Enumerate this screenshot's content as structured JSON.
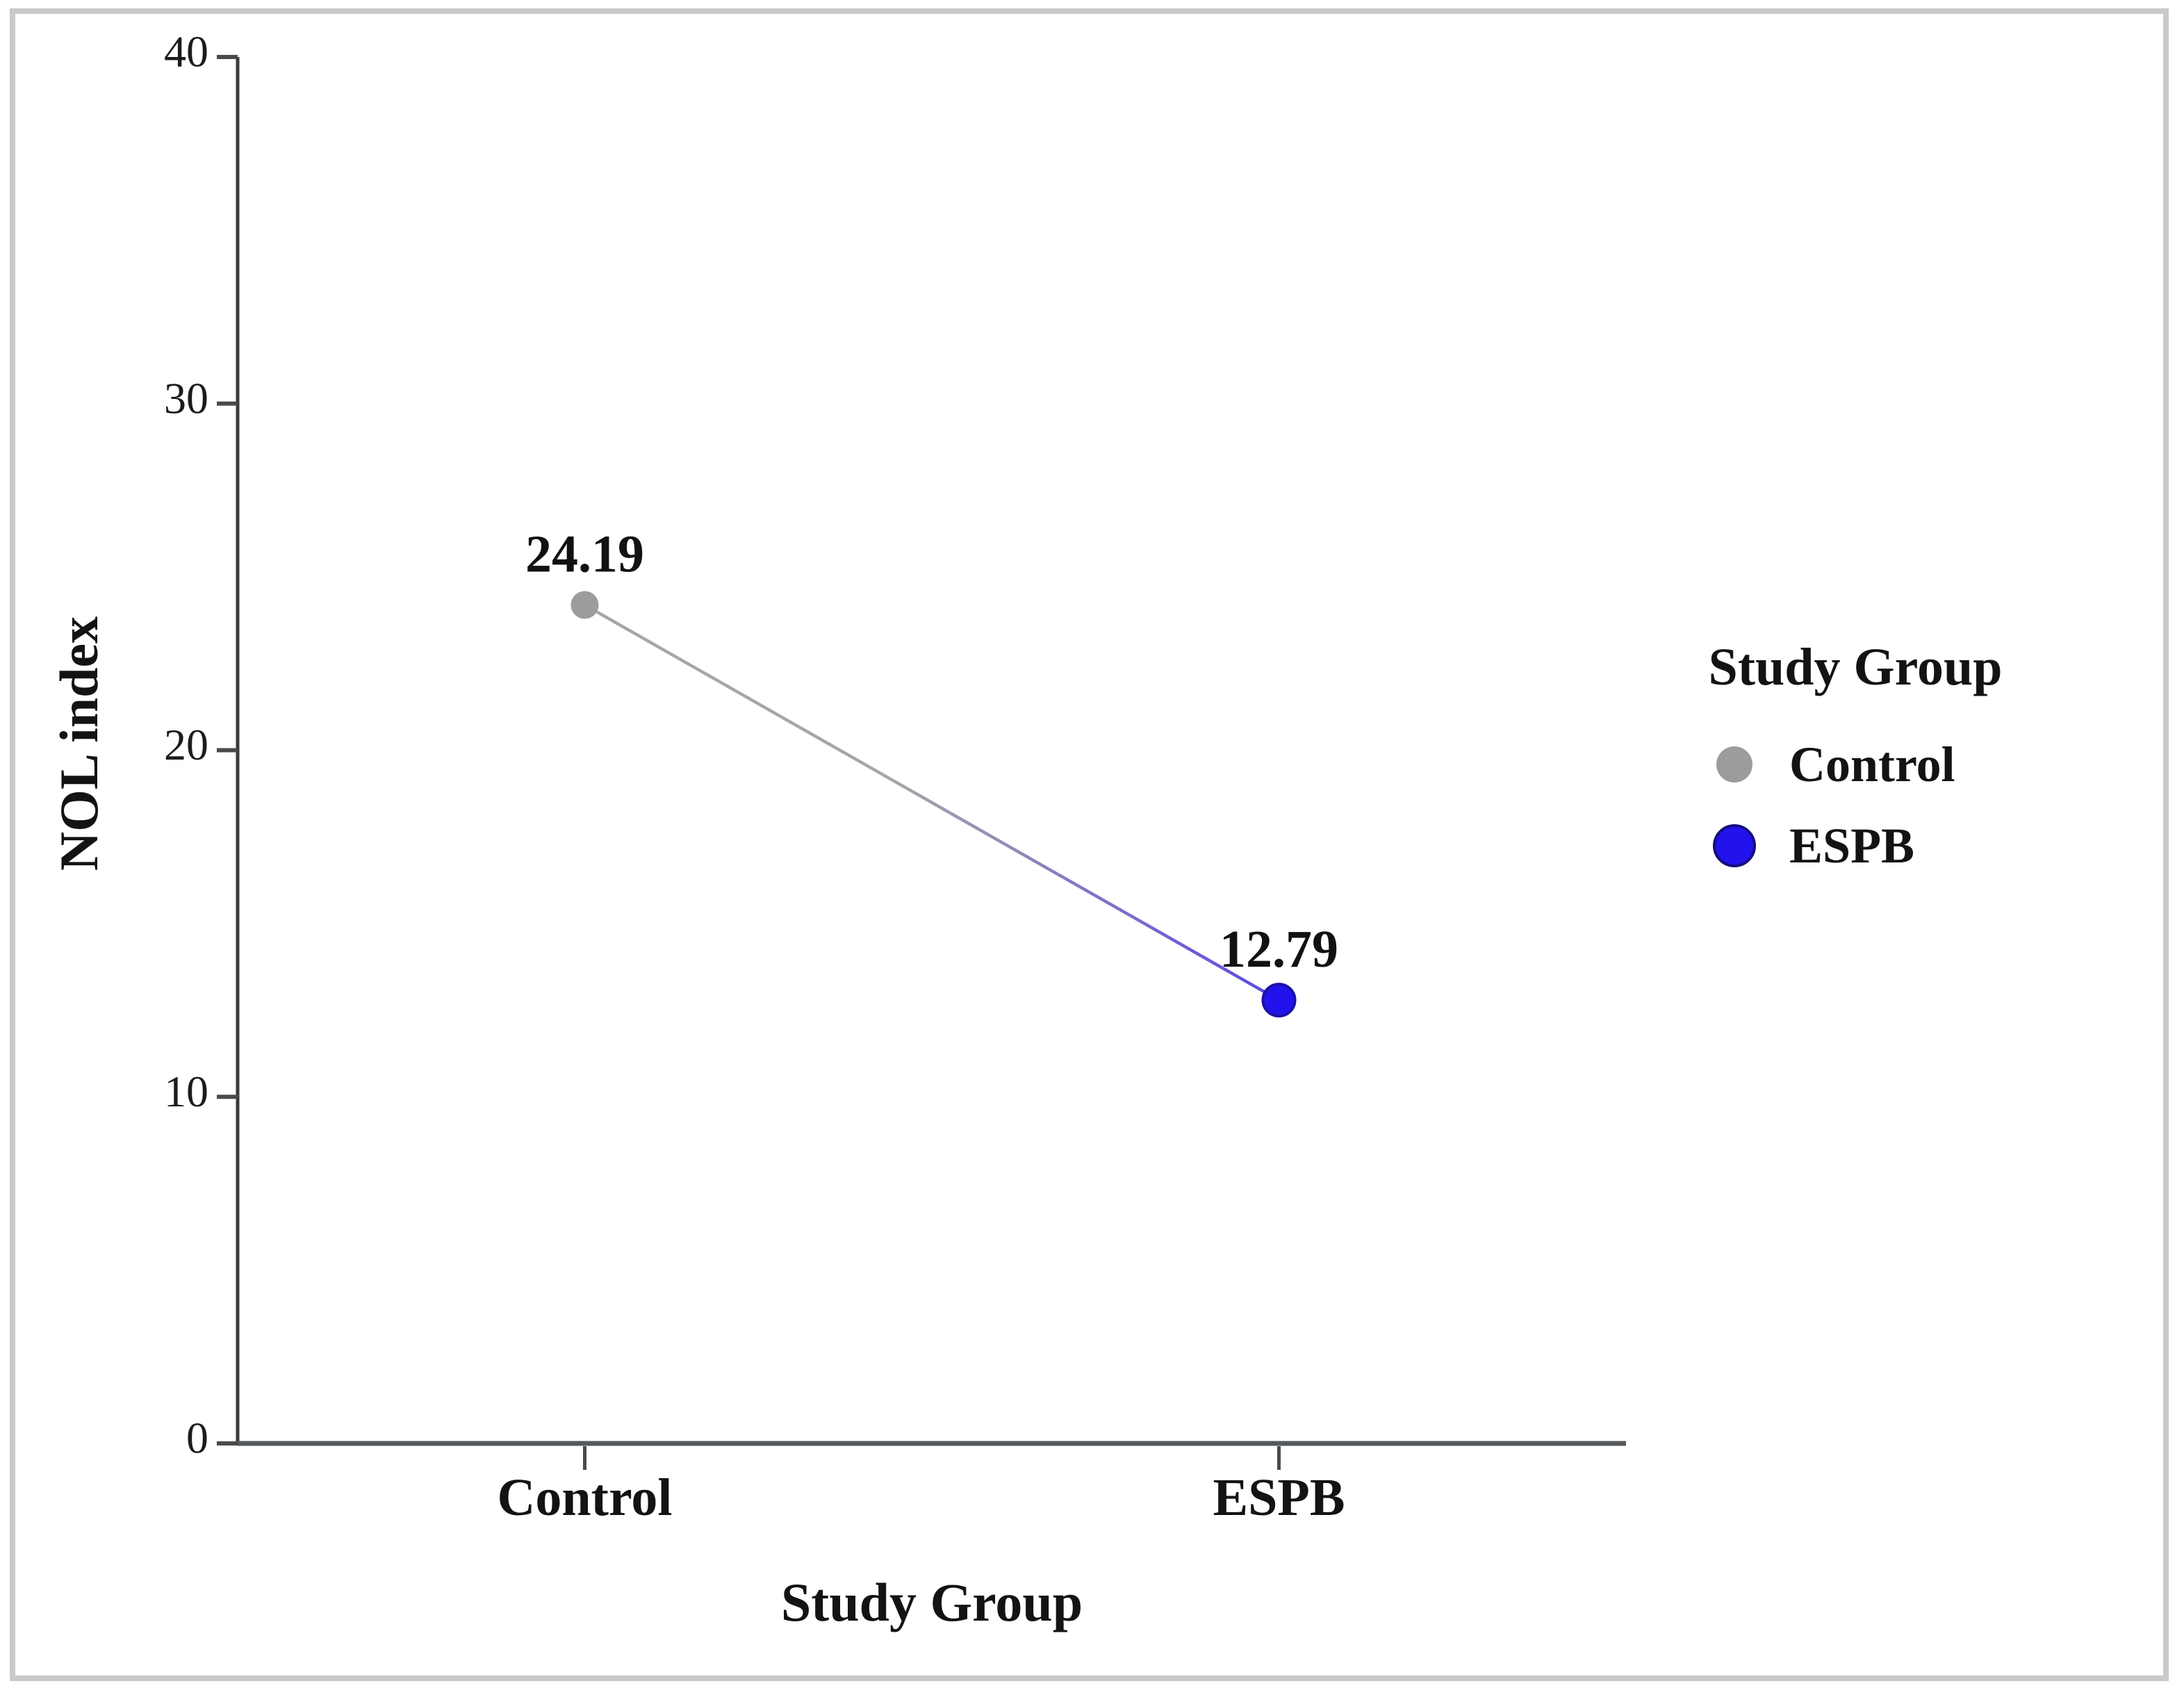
{
  "figure": {
    "background": "#ffffff",
    "frame_color": "#c9c9c9"
  },
  "chart_data": {
    "type": "line",
    "title": "",
    "categories": [
      "Control",
      "ESPB"
    ],
    "series": [
      {
        "name": "NOL index",
        "values": [
          24.19,
          12.79
        ]
      }
    ],
    "point_labels": [
      "24.19",
      "12.79"
    ],
    "xlabel": "Study Group",
    "ylabel": "NOL index",
    "yticks": [
      0,
      10,
      20,
      30,
      40
    ],
    "ylim": [
      0,
      40
    ],
    "grid": false,
    "point_colors": [
      "#9c9c9c",
      "#2213ec"
    ],
    "point_edge_colors": [
      "#9c9c9c",
      "#1d10a8"
    ],
    "line_gradient": [
      "#a6a6a6",
      "#5a49e4"
    ],
    "axis_color": "#55595c",
    "text_color": "#131313",
    "legend": {
      "title": "Study Group",
      "position": "right",
      "items": [
        {
          "label": "Control",
          "color": "#9c9c9c"
        },
        {
          "label": "ESPB",
          "color": "#2213ec"
        }
      ]
    }
  }
}
